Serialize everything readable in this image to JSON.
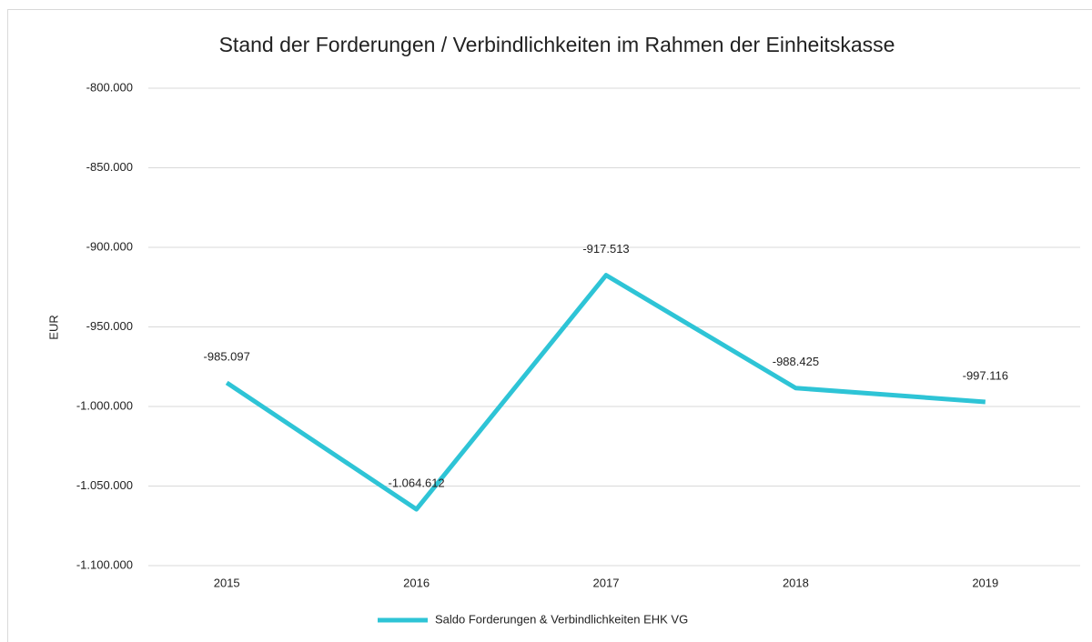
{
  "chart_data": {
    "type": "line",
    "title": "Stand der Forderungen / Verbindlichkeiten im Rahmen der Einheitskasse",
    "y_label": "EUR",
    "categories": [
      "2015",
      "2016",
      "2017",
      "2018",
      "2019"
    ],
    "series": [
      {
        "name": "Saldo Forderungen & Verbindlichkeiten EHK VG",
        "color": "#2ec4d6",
        "values": [
          -985097,
          -1064612,
          -917513,
          -988425,
          -997116
        ],
        "value_labels": [
          "-985.097",
          "-1.064.612",
          "-917.513",
          "-988.425",
          "-997.116"
        ]
      }
    ],
    "ylim": [
      -1100000,
      -800000
    ],
    "yticks": [
      {
        "value": -1100000,
        "label": "-1.100.000"
      },
      {
        "value": -1050000,
        "label": "-1.050.000"
      },
      {
        "value": -1000000,
        "label": "-1.000.000"
      },
      {
        "value": -950000,
        "label": "-950.000"
      },
      {
        "value": -900000,
        "label": "-900.000"
      },
      {
        "value": -850000,
        "label": "-850.000"
      },
      {
        "value": -800000,
        "label": "-800.000"
      }
    ],
    "grid": true,
    "legend": "bottom"
  }
}
